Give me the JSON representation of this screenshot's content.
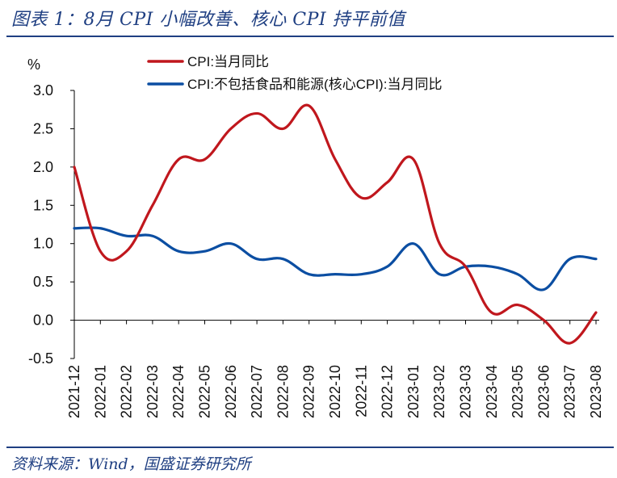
{
  "header": {
    "title": "图表 1：8月 CPI 小幅改善、核心 CPI 持平前值"
  },
  "footer": {
    "source": "资料来源：Wind，国盛证券研究所"
  },
  "colors": {
    "cpi": "#c0171d",
    "core": "#0b4ea2",
    "accent": "#1f3f82"
  },
  "chart_data": {
    "type": "line",
    "ylabel": "%",
    "ylim": [
      -0.5,
      3.0
    ],
    "yticks": [
      "3.0",
      "2.5",
      "2.0",
      "1.5",
      "1.0",
      "0.5",
      "0.0",
      "-0.5"
    ],
    "legend_position": "top",
    "categories": [
      "2021-12",
      "2022-01",
      "2022-02",
      "2022-03",
      "2022-04",
      "2022-05",
      "2022-06",
      "2022-07",
      "2022-08",
      "2022-09",
      "2022-10",
      "2022-11",
      "2022-12",
      "2023-01",
      "2023-02",
      "2023-03",
      "2023-04",
      "2023-05",
      "2023-06",
      "2023-07",
      "2023-08"
    ],
    "series": [
      {
        "name": "CPI:当月同比",
        "values": [
          2.0,
          0.9,
          0.9,
          1.5,
          2.1,
          2.1,
          2.5,
          2.7,
          2.5,
          2.8,
          2.1,
          1.6,
          1.8,
          2.1,
          1.0,
          0.7,
          0.1,
          0.2,
          0.0,
          -0.3,
          0.1
        ]
      },
      {
        "name": "CPI:不包括食品和能源(核心CPI):当月同比",
        "values": [
          1.2,
          1.2,
          1.1,
          1.1,
          0.9,
          0.9,
          1.0,
          0.8,
          0.8,
          0.6,
          0.6,
          0.6,
          0.7,
          1.0,
          0.6,
          0.7,
          0.7,
          0.6,
          0.4,
          0.8,
          0.8
        ]
      }
    ]
  }
}
